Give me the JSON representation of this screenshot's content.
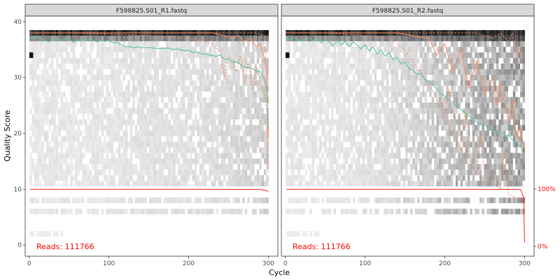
{
  "chart_data": {
    "type": "heatmap",
    "xlabel": "Cycle",
    "ylabel": "Quality Score",
    "x_ticks": [
      0,
      100,
      200,
      300
    ],
    "y_ticks": [
      0,
      10,
      20,
      30,
      40
    ],
    "xlim": [
      -5,
      312
    ],
    "ylim": [
      -2,
      41
    ],
    "right_axis_labels": [
      "100%",
      "0%"
    ],
    "colors": {
      "mean_line": "#66c2a5",
      "quantile_line": "#fc8d62",
      "reads_line": "#ff0000",
      "reads_text": "#ff0000",
      "strip_bg": "#d9d9d9"
    },
    "panels": [
      {
        "title": "F598825.S01_R1.fastq",
        "reads_label": "Reads:  111766",
        "mean": [
          [
            1,
            37.2
          ],
          [
            5,
            37.0
          ],
          [
            10,
            37.3
          ],
          [
            15,
            37.0
          ],
          [
            20,
            36.6
          ],
          [
            25,
            36.4
          ],
          [
            30,
            36.9
          ],
          [
            35,
            37.1
          ],
          [
            40,
            36.6
          ],
          [
            45,
            37.0
          ],
          [
            50,
            36.9
          ],
          [
            55,
            36.3
          ],
          [
            60,
            36.6
          ],
          [
            65,
            36.8
          ],
          [
            70,
            36.6
          ],
          [
            75,
            36.9
          ],
          [
            80,
            36.7
          ],
          [
            85,
            36.4
          ],
          [
            90,
            36.7
          ],
          [
            95,
            36.5
          ],
          [
            100,
            36.6
          ],
          [
            105,
            36.2
          ],
          [
            110,
            36.3
          ],
          [
            115,
            35.9
          ],
          [
            120,
            35.5
          ],
          [
            125,
            35.6
          ],
          [
            130,
            35.3
          ],
          [
            135,
            35.5
          ],
          [
            140,
            35.4
          ],
          [
            145,
            35.3
          ],
          [
            150,
            35.4
          ],
          [
            155,
            35.3
          ],
          [
            160,
            35.2
          ],
          [
            165,
            35.2
          ],
          [
            170,
            35.2
          ],
          [
            175,
            35.3
          ],
          [
            180,
            35.0
          ],
          [
            185,
            35.1
          ],
          [
            190,
            35.0
          ],
          [
            195,
            34.8
          ],
          [
            200,
            34.9
          ],
          [
            205,
            34.5
          ],
          [
            210,
            34.6
          ],
          [
            215,
            34.3
          ],
          [
            220,
            34.2
          ],
          [
            225,
            34.1
          ],
          [
            230,
            33.9
          ],
          [
            235,
            33.8
          ],
          [
            240,
            34.0
          ],
          [
            245,
            33.2
          ],
          [
            250,
            33.4
          ],
          [
            255,
            32.7
          ],
          [
            260,
            32.9
          ],
          [
            265,
            32.3
          ],
          [
            270,
            31.9
          ],
          [
            275,
            31.8
          ],
          [
            280,
            31.6
          ],
          [
            285,
            31.2
          ],
          [
            290,
            31.0
          ],
          [
            295,
            29.8
          ],
          [
            298,
            28.0
          ],
          [
            300,
            21.0
          ]
        ],
        "q50": [
          [
            1,
            38
          ],
          [
            20,
            38
          ],
          [
            50,
            38
          ],
          [
            100,
            38
          ],
          [
            150,
            38
          ],
          [
            200,
            38
          ],
          [
            230,
            38
          ],
          [
            245,
            37.5
          ],
          [
            255,
            37
          ],
          [
            262,
            37.5
          ],
          [
            270,
            36.5
          ],
          [
            278,
            37
          ],
          [
            285,
            35.5
          ],
          [
            290,
            36
          ],
          [
            295,
            33.5
          ],
          [
            298,
            31
          ],
          [
            300,
            19
          ]
        ],
        "q25": [
          [
            1,
            38
          ],
          [
            50,
            38
          ],
          [
            100,
            37.8
          ],
          [
            150,
            37.5
          ],
          [
            200,
            37
          ],
          [
            220,
            36.5
          ],
          [
            230,
            36
          ],
          [
            240,
            34.5
          ],
          [
            245,
            30
          ],
          [
            250,
            34
          ],
          [
            255,
            33
          ],
          [
            260,
            31
          ],
          [
            265,
            34
          ],
          [
            270,
            29
          ],
          [
            275,
            33
          ],
          [
            280,
            28
          ],
          [
            285,
            32
          ],
          [
            290,
            29
          ],
          [
            295,
            27
          ],
          [
            298,
            24
          ],
          [
            300,
            13
          ]
        ],
        "q75": [
          [
            1,
            38
          ],
          [
            100,
            38
          ],
          [
            200,
            38
          ],
          [
            250,
            38
          ],
          [
            270,
            38
          ],
          [
            285,
            38
          ],
          [
            295,
            37.5
          ],
          [
            300,
            25
          ]
        ],
        "reads_pct": [
          [
            1,
            100
          ],
          [
            100,
            100
          ],
          [
            200,
            99.9
          ],
          [
            250,
            99.8
          ],
          [
            290,
            99.5
          ],
          [
            296,
            98
          ],
          [
            300,
            96
          ]
        ]
      },
      {
        "title": "F598825.S01_R2.fastq",
        "reads_label": "Reads:  111766",
        "mean": [
          [
            1,
            37.0
          ],
          [
            5,
            36.7
          ],
          [
            10,
            37.2
          ],
          [
            15,
            36.8
          ],
          [
            20,
            36.5
          ],
          [
            25,
            36.9
          ],
          [
            30,
            37.1
          ],
          [
            35,
            36.6
          ],
          [
            40,
            36.9
          ],
          [
            45,
            36.2
          ],
          [
            50,
            36.8
          ],
          [
            55,
            36.4
          ],
          [
            60,
            35.6
          ],
          [
            65,
            36.7
          ],
          [
            70,
            35.8
          ],
          [
            75,
            36.5
          ],
          [
            80,
            35.5
          ],
          [
            85,
            36.4
          ],
          [
            90,
            35.8
          ],
          [
            95,
            35.1
          ],
          [
            100,
            35.9
          ],
          [
            105,
            34.8
          ],
          [
            110,
            35.5
          ],
          [
            115,
            34.2
          ],
          [
            120,
            35.0
          ],
          [
            125,
            33.8
          ],
          [
            130,
            34.5
          ],
          [
            135,
            33.2
          ],
          [
            140,
            33.6
          ],
          [
            145,
            32.4
          ],
          [
            150,
            32.8
          ],
          [
            155,
            31.6
          ],
          [
            160,
            31.3
          ],
          [
            165,
            30.6
          ],
          [
            170,
            30.7
          ],
          [
            175,
            29.6
          ],
          [
            180,
            29.3
          ],
          [
            185,
            28.7
          ],
          [
            190,
            27.9
          ],
          [
            195,
            27.1
          ],
          [
            200,
            26.7
          ],
          [
            205,
            25.9
          ],
          [
            210,
            25.6
          ],
          [
            215,
            24.8
          ],
          [
            220,
            24.3
          ],
          [
            225,
            23.8
          ],
          [
            230,
            23.2
          ],
          [
            235,
            22.7
          ],
          [
            240,
            22.0
          ],
          [
            245,
            21.5
          ],
          [
            250,
            21.6
          ],
          [
            255,
            20.7
          ],
          [
            260,
            20.6
          ],
          [
            265,
            20.0
          ],
          [
            270,
            20.3
          ],
          [
            275,
            19.5
          ],
          [
            280,
            19.7
          ],
          [
            285,
            18.8
          ],
          [
            290,
            18.3
          ],
          [
            295,
            17.6
          ],
          [
            298,
            16.5
          ],
          [
            300,
            16.7
          ]
        ],
        "q50": [
          [
            1,
            38
          ],
          [
            50,
            38
          ],
          [
            100,
            38
          ],
          [
            140,
            38
          ],
          [
            160,
            37.5
          ],
          [
            180,
            37
          ],
          [
            190,
            34
          ],
          [
            200,
            36
          ],
          [
            210,
            31
          ],
          [
            220,
            35
          ],
          [
            230,
            28
          ],
          [
            240,
            33
          ],
          [
            250,
            27
          ],
          [
            260,
            30
          ],
          [
            265,
            25
          ],
          [
            270,
            29
          ],
          [
            280,
            22
          ],
          [
            285,
            26
          ],
          [
            290,
            19
          ],
          [
            295,
            21
          ],
          [
            300,
            17
          ]
        ],
        "q25": [
          [
            1,
            38
          ],
          [
            50,
            38
          ],
          [
            100,
            37.5
          ],
          [
            130,
            37
          ],
          [
            150,
            35
          ],
          [
            160,
            33
          ],
          [
            170,
            31
          ],
          [
            180,
            29
          ],
          [
            190,
            26
          ],
          [
            200,
            23
          ],
          [
            205,
            28
          ],
          [
            210,
            20
          ],
          [
            220,
            17
          ],
          [
            225,
            24
          ],
          [
            230,
            15
          ],
          [
            240,
            13
          ],
          [
            245,
            20
          ],
          [
            250,
            12
          ],
          [
            260,
            11
          ],
          [
            270,
            10
          ],
          [
            275,
            17
          ],
          [
            280,
            9
          ],
          [
            290,
            8.5
          ],
          [
            300,
            8
          ]
        ],
        "q75": [
          [
            1,
            38
          ],
          [
            100,
            38
          ],
          [
            200,
            38
          ],
          [
            240,
            38
          ],
          [
            250,
            37.5
          ],
          [
            260,
            37
          ],
          [
            270,
            38
          ],
          [
            280,
            36.5
          ],
          [
            285,
            38
          ],
          [
            290,
            34
          ],
          [
            295,
            36
          ],
          [
            300,
            30
          ]
        ],
        "reads_pct": [
          [
            1,
            100
          ],
          [
            100,
            100
          ],
          [
            200,
            100
          ],
          [
            280,
            99.8
          ],
          [
            295,
            99.5
          ],
          [
            299,
            85
          ],
          [
            300,
            5
          ]
        ]
      }
    ]
  }
}
